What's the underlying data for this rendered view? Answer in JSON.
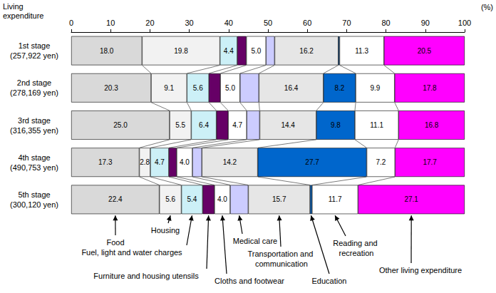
{
  "chart_data": {
    "type": "bar",
    "orientation": "horizontal",
    "stacked": true,
    "data_labels": true,
    "grid": false,
    "xlabel": "(%)",
    "ylabel": "Living expenditure",
    "xlim": [
      0,
      100
    ],
    "xticks": [
      0,
      10,
      20,
      30,
      40,
      50,
      60,
      70,
      80,
      90,
      100
    ],
    "categories": [
      "1st stage (257,922 yen)",
      "2nd stage (278,169 yen)",
      "3rd stage (316,355 yen)",
      "4th stage (490,753 yen)",
      "5th stage (300,120 yen)"
    ],
    "series": [
      {
        "name": "Food",
        "color": "#d9d9d9",
        "values": [
          18.0,
          20.3,
          25.0,
          17.3,
          22.4
        ],
        "value_labels": [
          "18.0",
          "20.3",
          "25.0",
          "17.3",
          "22.4"
        ]
      },
      {
        "name": "Housing",
        "color": "#f2f2f2",
        "values": [
          19.8,
          9.1,
          5.5,
          2.8,
          5.6
        ],
        "value_labels": [
          "19.8",
          "9.1",
          "5.5",
          "2.8",
          "5.6"
        ]
      },
      {
        "name": "Fuel, light and water charges",
        "color": "#ccf0f7",
        "values": [
          4.4,
          5.6,
          6.4,
          4.7,
          5.4
        ],
        "value_labels": [
          "4.4",
          "5.6",
          "6.4",
          "4.7",
          "5.4"
        ]
      },
      {
        "name": "Furniture and housing utensils",
        "color": "#660066",
        "values": [
          2.3,
          2.9,
          3.0,
          2.0,
          3.0
        ],
        "value_labels": [
          null,
          null,
          null,
          null,
          null
        ]
      },
      {
        "name": "Cloths and footwear",
        "color": "#ffffff",
        "values": [
          5.0,
          5.0,
          4.7,
          4.0,
          4.0
        ],
        "value_labels": [
          "5.0",
          "5.0",
          "4.7",
          "4.0",
          "4.0"
        ]
      },
      {
        "name": "Medical care",
        "color": "#ccccff",
        "values": [
          2.2,
          4.8,
          3.3,
          2.4,
          4.6
        ],
        "value_labels": [
          null,
          null,
          null,
          null,
          null
        ]
      },
      {
        "name": "Transportation and communication",
        "color": "#e6e6e6",
        "values": [
          16.2,
          16.4,
          14.4,
          14.2,
          15.7
        ],
        "value_labels": [
          "16.2",
          "16.4",
          "14.4",
          "14.2",
          "15.7"
        ]
      },
      {
        "name": "Education",
        "color": "#0066cc",
        "values": [
          0.3,
          8.2,
          9.8,
          27.7,
          0.5
        ],
        "value_labels": [
          null,
          "8.2",
          "9.8",
          "27.7",
          null
        ]
      },
      {
        "name": "Reading and recreation",
        "color": "#ffffff",
        "values": [
          11.3,
          9.9,
          11.1,
          7.2,
          11.7
        ],
        "value_labels": [
          "11.3",
          "9.9",
          "11.1",
          "7.2",
          "11.7"
        ]
      },
      {
        "name": "Other living expenditure",
        "color": "#ff00ff",
        "values": [
          20.5,
          17.8,
          16.8,
          17.7,
          27.1
        ],
        "value_labels": [
          "20.5",
          "17.8",
          "16.8",
          "17.7",
          "27.1"
        ]
      }
    ]
  }
}
